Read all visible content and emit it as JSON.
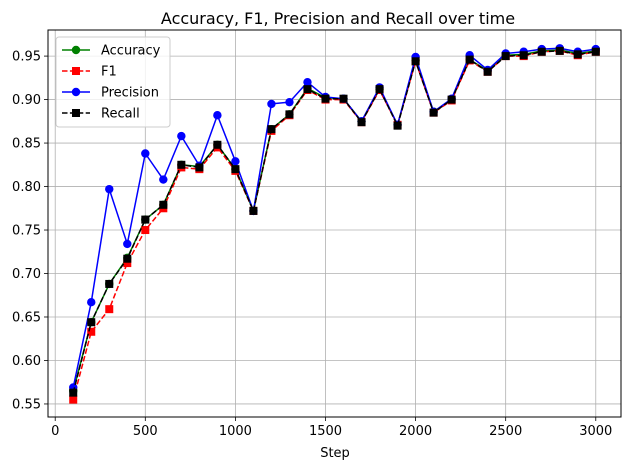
{
  "chart_data": {
    "type": "line",
    "title": "Accuracy, F1, Precision and Recall over time",
    "xlabel": "Step",
    "ylabel": "",
    "xlim": [
      -40,
      3140
    ],
    "ylim": [
      0.535,
      0.98
    ],
    "xticks": [
      0,
      500,
      1000,
      1500,
      2000,
      2500,
      3000
    ],
    "yticks": [
      0.55,
      0.6,
      0.65,
      0.7,
      0.75,
      0.8,
      0.85,
      0.9,
      0.95
    ],
    "grid": true,
    "legend_position": "top-left",
    "x": [
      100,
      200,
      300,
      400,
      500,
      600,
      700,
      800,
      900,
      1000,
      1100,
      1200,
      1300,
      1400,
      1500,
      1600,
      1700,
      1800,
      1900,
      2000,
      2100,
      2200,
      2300,
      2400,
      2500,
      2600,
      2700,
      2800,
      2900,
      3000
    ],
    "series": [
      {
        "name": "Accuracy",
        "color": "#008000",
        "linestyle": "solid",
        "marker": "circle",
        "values": [
          0.565,
          0.644,
          0.688,
          0.718,
          0.762,
          0.779,
          0.825,
          0.823,
          0.848,
          0.82,
          0.772,
          0.866,
          0.883,
          0.913,
          0.902,
          0.901,
          0.875,
          0.912,
          0.871,
          0.945,
          0.886,
          0.9,
          0.946,
          0.933,
          0.951,
          0.952,
          0.956,
          0.957,
          0.953,
          0.956
        ]
      },
      {
        "name": "F1",
        "color": "#ff0000",
        "linestyle": "dashed",
        "marker": "square",
        "values": [
          0.555,
          0.633,
          0.659,
          0.712,
          0.75,
          0.775,
          0.822,
          0.82,
          0.845,
          0.818,
          0.772,
          0.864,
          0.882,
          0.911,
          0.9,
          0.9,
          0.874,
          0.911,
          0.871,
          0.944,
          0.885,
          0.899,
          0.945,
          0.932,
          0.95,
          0.95,
          0.955,
          0.956,
          0.951,
          0.955
        ]
      },
      {
        "name": "Precision",
        "color": "#0000ff",
        "linestyle": "solid",
        "marker": "circle",
        "values": [
          0.569,
          0.667,
          0.797,
          0.734,
          0.838,
          0.808,
          0.858,
          0.824,
          0.882,
          0.829,
          0.772,
          0.895,
          0.897,
          0.92,
          0.903,
          0.901,
          0.875,
          0.914,
          0.871,
          0.949,
          0.886,
          0.901,
          0.951,
          0.934,
          0.953,
          0.955,
          0.958,
          0.959,
          0.955,
          0.958
        ]
      },
      {
        "name": "Recall",
        "color": "#000000",
        "linestyle": "dashed",
        "marker": "square",
        "values": [
          0.563,
          0.644,
          0.688,
          0.717,
          0.762,
          0.779,
          0.825,
          0.822,
          0.848,
          0.82,
          0.772,
          0.866,
          0.883,
          0.912,
          0.901,
          0.901,
          0.874,
          0.912,
          0.87,
          0.944,
          0.885,
          0.9,
          0.946,
          0.932,
          0.95,
          0.951,
          0.955,
          0.956,
          0.952,
          0.955
        ]
      }
    ]
  }
}
